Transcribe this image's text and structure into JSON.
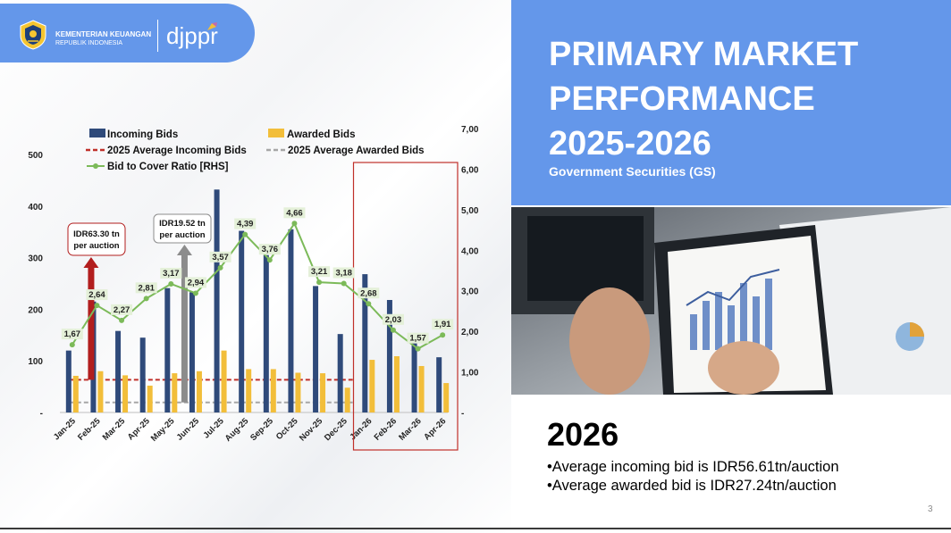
{
  "header": {
    "ministry_line1": "KEMENTERIAN KEUANGAN",
    "ministry_line2": "REPUBLIK INDONESIA",
    "brand": "djppr"
  },
  "title": {
    "line1": "PRIMARY MARKET",
    "line2": "PERFORMANCE",
    "line3": "2025-2026",
    "subtitle": "Government Securities (GS)"
  },
  "summary": {
    "year": "2026",
    "bullet1": "•Average incoming bid is IDR56.61tn/auction",
    "bullet2": "•Average awarded bid is IDR27.24tn/auction"
  },
  "page_number": "3",
  "colors": {
    "accent": "#6497ea",
    "incoming": "#2f4a7a",
    "awarded": "#f2be3a",
    "ratio": "#7cba59",
    "avg_incoming": "#c0302a",
    "avg_awarded": "#a6a6a6",
    "highlight_box": "#c0302a"
  },
  "chart_data": {
    "type": "bar",
    "categories": [
      "Jan-25",
      "Feb-25",
      "Mar-25",
      "Apr-25",
      "May-25",
      "Jun-25",
      "Jul-25",
      "Aug-25",
      "Sep-25",
      "Oct-25",
      "Nov-25",
      "Dec-25",
      "Jan-26",
      "Feb-26",
      "Mar-26",
      "Apr-26"
    ],
    "series": [
      {
        "name": "Incoming Bids",
        "axis": "left",
        "values": [
          120,
          215,
          158,
          145,
          241,
          233,
          432,
          352,
          305,
          355,
          245,
          152,
          268,
          218,
          135,
          107
        ]
      },
      {
        "name": "Awarded Bids",
        "axis": "left",
        "values": [
          71,
          80,
          72,
          52,
          76,
          80,
          120,
          84,
          84,
          77,
          76,
          48,
          102,
          109,
          90,
          57
        ]
      },
      {
        "name": "Bid to Cover Ratio [RHS]",
        "axis": "right",
        "type": "line",
        "values": [
          1.67,
          2.64,
          2.27,
          2.81,
          3.17,
          2.94,
          3.57,
          4.39,
          3.76,
          4.66,
          3.21,
          3.18,
          2.68,
          2.03,
          1.57,
          1.91
        ]
      }
    ],
    "data_labels": [
      "1,67",
      "2,64",
      "2,27",
      "2,81",
      "3,17",
      "2,94",
      "3,57",
      "4,39",
      "3,76",
      "4,66",
      "3,21",
      "3,18",
      "2,68",
      "2,03",
      "1,57",
      "1,91"
    ],
    "reference_lines": [
      {
        "name": "2025 Average Incoming Bids",
        "value": 63.3
      },
      {
        "name": "2025 Average Awarded Bids",
        "value": 19.52
      }
    ],
    "annotations": [
      {
        "text_line1": "IDR63.30 tn",
        "text_line2": "per auction",
        "category": "Feb-25"
      },
      {
        "text_line1": "IDR19.52 tn",
        "text_line2": "per auction",
        "category": "Jun-25"
      }
    ],
    "highlight_range": [
      "Jan-26",
      "Apr-26"
    ],
    "left_axis": {
      "range": [
        0,
        500
      ],
      "ticks": [
        0,
        100,
        200,
        300,
        400,
        500
      ],
      "tick_labels": [
        "-",
        "100",
        "200",
        "300",
        "400",
        "500"
      ]
    },
    "right_axis": {
      "range": [
        0,
        7
      ],
      "ticks": [
        0,
        1,
        2,
        3,
        4,
        5,
        6,
        7
      ],
      "tick_labels": [
        "-",
        "1,00",
        "2,00",
        "3,00",
        "4,00",
        "5,00",
        "6,00",
        "7,00"
      ]
    },
    "legend": {
      "placement": "top",
      "items": [
        "Incoming Bids",
        "Awarded Bids",
        "2025 Average Incoming Bids",
        "2025 Average Awarded Bids",
        "Bid to Cover Ratio [RHS]"
      ]
    },
    "grid": false
  }
}
